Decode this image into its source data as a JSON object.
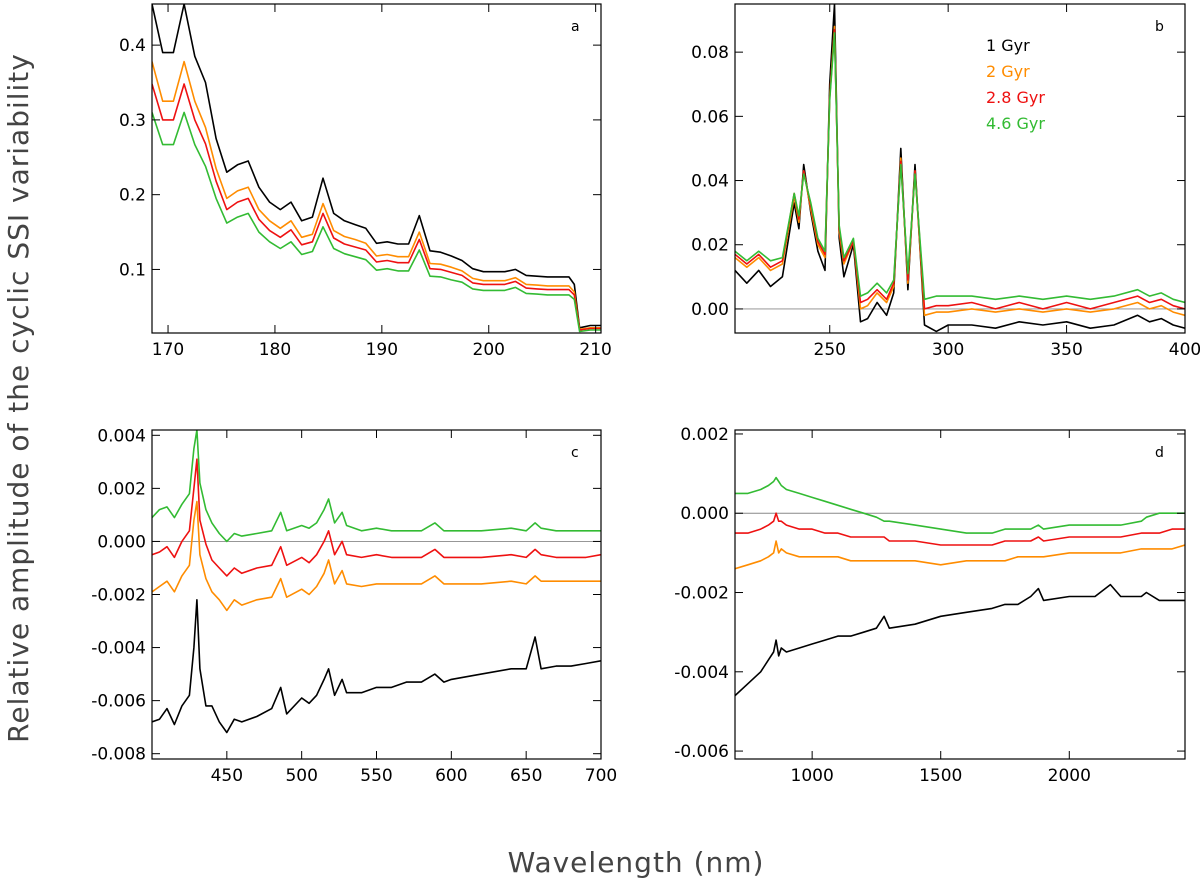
{
  "figure": {
    "xlabel": "Wavelength (nm)",
    "ylabel": "Relative amplitude of the cyclic SSI variability"
  },
  "colors": {
    "1 Gyr": "#000000",
    "2 Gyr": "#ff8c00",
    "2.8 Gyr": "#ee1111",
    "4.6 Gyr": "#33bb33"
  },
  "chart_data": [
    {
      "type": "line",
      "panel": "a",
      "xlim": [
        168.5,
        210.5
      ],
      "ylim": [
        0.015,
        0.455
      ],
      "xticks": [
        170,
        180,
        190,
        200,
        210
      ],
      "yticks": [
        0.1,
        0.2,
        0.3,
        0.4
      ],
      "ytick_labels": [
        "0.1",
        "0.2",
        "0.3",
        "0.4"
      ],
      "x": [
        168.5,
        169.5,
        170.5,
        171.5,
        172.5,
        173.5,
        174.5,
        175.5,
        176.5,
        177.5,
        178.5,
        179.5,
        180.5,
        181.5,
        182.5,
        183.5,
        184.5,
        185.5,
        186.5,
        187.5,
        188.5,
        189.5,
        190.5,
        191.5,
        192.5,
        193.5,
        194.5,
        195.5,
        196.5,
        197.5,
        198.5,
        199.5,
        200.5,
        201.5,
        202.5,
        203.5,
        204.5,
        205.5,
        206.5,
        207.5,
        208.0,
        208.5,
        209.5,
        210.5
      ],
      "series": [
        {
          "name": "1 Gyr",
          "values": [
            0.455,
            0.39,
            0.39,
            0.455,
            0.385,
            0.35,
            0.275,
            0.23,
            0.24,
            0.245,
            0.21,
            0.19,
            0.18,
            0.19,
            0.165,
            0.17,
            0.222,
            0.175,
            0.165,
            0.16,
            0.155,
            0.135,
            0.137,
            0.134,
            0.134,
            0.172,
            0.125,
            0.123,
            0.118,
            0.112,
            0.101,
            0.097,
            0.097,
            0.097,
            0.1,
            0.092,
            0.091,
            0.09,
            0.09,
            0.09,
            0.08,
            0.022,
            0.025,
            0.025
          ]
        },
        {
          "name": "2 Gyr",
          "values": [
            0.378,
            0.325,
            0.325,
            0.378,
            0.325,
            0.29,
            0.235,
            0.195,
            0.205,
            0.21,
            0.18,
            0.165,
            0.155,
            0.165,
            0.143,
            0.147,
            0.188,
            0.152,
            0.144,
            0.14,
            0.135,
            0.118,
            0.12,
            0.117,
            0.117,
            0.15,
            0.108,
            0.107,
            0.103,
            0.098,
            0.088,
            0.085,
            0.085,
            0.085,
            0.089,
            0.08,
            0.079,
            0.078,
            0.078,
            0.078,
            0.07,
            0.02,
            0.022,
            0.022
          ]
        },
        {
          "name": "2.8 Gyr",
          "values": [
            0.348,
            0.3,
            0.3,
            0.348,
            0.3,
            0.268,
            0.218,
            0.18,
            0.19,
            0.195,
            0.167,
            0.152,
            0.143,
            0.153,
            0.133,
            0.137,
            0.175,
            0.142,
            0.134,
            0.13,
            0.126,
            0.11,
            0.112,
            0.109,
            0.109,
            0.14,
            0.101,
            0.1,
            0.096,
            0.092,
            0.082,
            0.08,
            0.08,
            0.08,
            0.084,
            0.075,
            0.074,
            0.073,
            0.073,
            0.073,
            0.066,
            0.019,
            0.021,
            0.021
          ]
        },
        {
          "name": "4.6 Gyr",
          "values": [
            0.31,
            0.267,
            0.267,
            0.31,
            0.267,
            0.238,
            0.195,
            0.162,
            0.17,
            0.175,
            0.15,
            0.137,
            0.128,
            0.137,
            0.12,
            0.124,
            0.157,
            0.128,
            0.121,
            0.117,
            0.113,
            0.099,
            0.101,
            0.098,
            0.098,
            0.126,
            0.091,
            0.09,
            0.086,
            0.083,
            0.074,
            0.072,
            0.072,
            0.072,
            0.076,
            0.068,
            0.067,
            0.066,
            0.066,
            0.066,
            0.06,
            0.017,
            0.019,
            0.019
          ]
        }
      ]
    },
    {
      "type": "line",
      "panel": "b",
      "xlim": [
        210,
        400
      ],
      "ylim": [
        -0.0075,
        0.095
      ],
      "xticks": [
        250,
        300,
        350,
        400
      ],
      "yticks": [
        0,
        0.02,
        0.04,
        0.06,
        0.08
      ],
      "ytick_labels": [
        "0.00",
        "0.02",
        "0.04",
        "0.06",
        "0.08"
      ],
      "zero_line": true,
      "legend": {
        "position": "top-right",
        "entries": [
          "1 Gyr",
          "2 Gyr",
          "2.8 Gyr",
          "4.6 Gyr"
        ]
      },
      "x": [
        210,
        215,
        220,
        225,
        230,
        235,
        237,
        239,
        242,
        245,
        248,
        250,
        252,
        254,
        256,
        260,
        263,
        266,
        270,
        274,
        277,
        280,
        283,
        286,
        290,
        295,
        300,
        310,
        320,
        330,
        340,
        350,
        360,
        370,
        380,
        385,
        390,
        395,
        400
      ],
      "series": [
        {
          "name": "1 Gyr",
          "values": [
            0.012,
            0.008,
            0.012,
            0.007,
            0.01,
            0.033,
            0.025,
            0.045,
            0.03,
            0.018,
            0.012,
            0.07,
            0.095,
            0.022,
            0.01,
            0.02,
            -0.004,
            -0.003,
            0.002,
            -0.002,
            0.005,
            0.05,
            0.006,
            0.045,
            -0.005,
            -0.007,
            -0.005,
            -0.005,
            -0.006,
            -0.004,
            -0.005,
            -0.004,
            -0.006,
            -0.005,
            -0.002,
            -0.004,
            -0.003,
            -0.005,
            -0.006
          ]
        },
        {
          "name": "2 Gyr",
          "values": [
            0.016,
            0.013,
            0.016,
            0.012,
            0.014,
            0.035,
            0.027,
            0.043,
            0.031,
            0.02,
            0.016,
            0.066,
            0.088,
            0.024,
            0.014,
            0.021,
            0.0,
            0.001,
            0.005,
            0.002,
            0.007,
            0.047,
            0.008,
            0.043,
            -0.002,
            -0.001,
            -0.001,
            0.0,
            -0.001,
            0.0,
            -0.001,
            0.0,
            -0.001,
            0.0,
            0.002,
            0.0,
            0.001,
            -0.001,
            -0.002
          ]
        },
        {
          "name": "2.8 Gyr",
          "values": [
            0.017,
            0.014,
            0.017,
            0.013,
            0.015,
            0.036,
            0.028,
            0.043,
            0.032,
            0.021,
            0.017,
            0.066,
            0.087,
            0.025,
            0.015,
            0.021,
            0.002,
            0.003,
            0.006,
            0.003,
            0.008,
            0.046,
            0.009,
            0.043,
            0.0,
            0.001,
            0.001,
            0.002,
            0.0,
            0.002,
            0.0,
            0.002,
            0.0,
            0.002,
            0.004,
            0.002,
            0.003,
            0.001,
            0.0
          ]
        },
        {
          "name": "4.6 Gyr",
          "values": [
            0.018,
            0.015,
            0.018,
            0.015,
            0.016,
            0.036,
            0.029,
            0.042,
            0.033,
            0.022,
            0.018,
            0.065,
            0.086,
            0.026,
            0.016,
            0.022,
            0.004,
            0.005,
            0.008,
            0.005,
            0.009,
            0.045,
            0.011,
            0.042,
            0.003,
            0.004,
            0.004,
            0.004,
            0.003,
            0.004,
            0.003,
            0.004,
            0.003,
            0.004,
            0.006,
            0.004,
            0.005,
            0.003,
            0.002
          ]
        }
      ]
    },
    {
      "type": "line",
      "panel": "c",
      "xlim": [
        400,
        700
      ],
      "ylim": [
        -0.0082,
        0.0042
      ],
      "xticks": [
        450,
        500,
        550,
        600,
        650,
        700
      ],
      "yticks": [
        -0.008,
        -0.006,
        -0.004,
        -0.002,
        0,
        0.002,
        0.004
      ],
      "ytick_labels": [
        "-0.008",
        "-0.006",
        "-0.004",
        "-0.002",
        "0.000",
        "0.002",
        "0.004"
      ],
      "zero_line": true,
      "x": [
        400,
        405,
        410,
        415,
        420,
        425,
        428,
        430,
        432,
        436,
        440,
        445,
        450,
        455,
        460,
        470,
        480,
        486,
        490,
        500,
        505,
        510,
        515,
        518,
        522,
        527,
        530,
        540,
        550,
        560,
        570,
        580,
        589,
        595,
        600,
        620,
        640,
        650,
        656,
        660,
        670,
        680,
        690,
        700
      ],
      "series": [
        {
          "name": "1 Gyr",
          "values": [
            -0.0068,
            -0.0067,
            -0.0063,
            -0.0069,
            -0.0062,
            -0.0058,
            -0.004,
            -0.0022,
            -0.0048,
            -0.0062,
            -0.0062,
            -0.0068,
            -0.0072,
            -0.0067,
            -0.0068,
            -0.0066,
            -0.0063,
            -0.0055,
            -0.0065,
            -0.0059,
            -0.0061,
            -0.0058,
            -0.0052,
            -0.0048,
            -0.0058,
            -0.0052,
            -0.0057,
            -0.0057,
            -0.0055,
            -0.0055,
            -0.0053,
            -0.0053,
            -0.005,
            -0.0053,
            -0.0052,
            -0.005,
            -0.0048,
            -0.0048,
            -0.0036,
            -0.0048,
            -0.0047,
            -0.0047,
            -0.0046,
            -0.0045
          ]
        },
        {
          "name": "2 Gyr",
          "values": [
            -0.0019,
            -0.0017,
            -0.0015,
            -0.0019,
            -0.0013,
            -0.0009,
            0.0008,
            0.0015,
            -0.0005,
            -0.0014,
            -0.0019,
            -0.0022,
            -0.0026,
            -0.0022,
            -0.0024,
            -0.0022,
            -0.0021,
            -0.0014,
            -0.0021,
            -0.0018,
            -0.002,
            -0.0017,
            -0.0012,
            -0.0007,
            -0.0016,
            -0.0011,
            -0.0016,
            -0.0017,
            -0.0016,
            -0.0016,
            -0.0016,
            -0.0016,
            -0.0013,
            -0.0016,
            -0.0016,
            -0.0016,
            -0.0015,
            -0.0016,
            -0.0013,
            -0.0015,
            -0.0015,
            -0.0015,
            -0.0015,
            -0.0015
          ]
        },
        {
          "name": "2.8 Gyr",
          "values": [
            -0.0005,
            -0.0004,
            -0.0002,
            -0.0006,
            0.0,
            0.0004,
            0.002,
            0.0031,
            0.0008,
            -0.0001,
            -0.0007,
            -0.001,
            -0.0013,
            -0.001,
            -0.0012,
            -0.001,
            -0.0009,
            -0.0002,
            -0.0009,
            -0.0006,
            -0.0008,
            -0.0005,
            0.0,
            0.0004,
            -0.0005,
            0.0,
            -0.0005,
            -0.0006,
            -0.0005,
            -0.0006,
            -0.0006,
            -0.0006,
            -0.0003,
            -0.0006,
            -0.0006,
            -0.0006,
            -0.0005,
            -0.0006,
            -0.0003,
            -0.0005,
            -0.0006,
            -0.0006,
            -0.0006,
            -0.0005
          ]
        },
        {
          "name": "4.6 Gyr",
          "values": [
            0.0009,
            0.0012,
            0.0013,
            0.0009,
            0.0014,
            0.0018,
            0.0035,
            0.0042,
            0.0022,
            0.0012,
            0.0007,
            0.0003,
            0.0,
            0.0003,
            0.0002,
            0.0003,
            0.0004,
            0.0011,
            0.0004,
            0.0006,
            0.0005,
            0.0007,
            0.0012,
            0.0016,
            0.0007,
            0.0011,
            0.0006,
            0.0004,
            0.0005,
            0.0004,
            0.0004,
            0.0004,
            0.0007,
            0.0004,
            0.0004,
            0.0004,
            0.0005,
            0.0004,
            0.0007,
            0.0005,
            0.0004,
            0.0004,
            0.0004,
            0.0004
          ]
        }
      ]
    },
    {
      "type": "line",
      "panel": "d",
      "xlim": [
        700,
        2450
      ],
      "ylim": [
        -0.0062,
        0.0021
      ],
      "xticks": [
        1000,
        1500,
        2000
      ],
      "yticks": [
        -0.006,
        -0.004,
        -0.002,
        0,
        0.002
      ],
      "ytick_labels": [
        "-0.006",
        "-0.004",
        "-0.002",
        "0.000",
        "0.002"
      ],
      "zero_line": true,
      "x": [
        700,
        750,
        800,
        830,
        850,
        860,
        870,
        880,
        900,
        950,
        1000,
        1050,
        1100,
        1150,
        1200,
        1250,
        1280,
        1300,
        1400,
        1500,
        1600,
        1700,
        1750,
        1800,
        1850,
        1880,
        1900,
        2000,
        2100,
        2160,
        2200,
        2280,
        2300,
        2350,
        2400,
        2450
      ],
      "series": [
        {
          "name": "1 Gyr",
          "values": [
            -0.0046,
            -0.0043,
            -0.004,
            -0.0037,
            -0.0035,
            -0.0032,
            -0.0036,
            -0.0034,
            -0.0035,
            -0.0034,
            -0.0033,
            -0.0032,
            -0.0031,
            -0.0031,
            -0.003,
            -0.0029,
            -0.0026,
            -0.0029,
            -0.0028,
            -0.0026,
            -0.0025,
            -0.0024,
            -0.0023,
            -0.0023,
            -0.0021,
            -0.0019,
            -0.0022,
            -0.0021,
            -0.0021,
            -0.0018,
            -0.0021,
            -0.0021,
            -0.002,
            -0.0022,
            -0.0022,
            -0.0022
          ]
        },
        {
          "name": "2 Gyr",
          "values": [
            -0.0014,
            -0.0013,
            -0.0012,
            -0.0011,
            -0.001,
            -0.0007,
            -0.001,
            -0.0009,
            -0.001,
            -0.0011,
            -0.0011,
            -0.0011,
            -0.0011,
            -0.0012,
            -0.0012,
            -0.0012,
            -0.0012,
            -0.0012,
            -0.0012,
            -0.0013,
            -0.0012,
            -0.0012,
            -0.0012,
            -0.0011,
            -0.0011,
            -0.0011,
            -0.0011,
            -0.001,
            -0.001,
            -0.001,
            -0.001,
            -0.0009,
            -0.0009,
            -0.0009,
            -0.0009,
            -0.0008
          ]
        },
        {
          "name": "2.8 Gyr",
          "values": [
            -0.0005,
            -0.0005,
            -0.0004,
            -0.0003,
            -0.0002,
            0.0,
            -0.0002,
            -0.0002,
            -0.0003,
            -0.0004,
            -0.0004,
            -0.0005,
            -0.0005,
            -0.0006,
            -0.0006,
            -0.0006,
            -0.0006,
            -0.0007,
            -0.0007,
            -0.0008,
            -0.0008,
            -0.0008,
            -0.0007,
            -0.0007,
            -0.0007,
            -0.0006,
            -0.0007,
            -0.0006,
            -0.0006,
            -0.0006,
            -0.0006,
            -0.0005,
            -0.0005,
            -0.0005,
            -0.0004,
            -0.0004
          ]
        },
        {
          "name": "4.6 Gyr",
          "values": [
            0.0005,
            0.0005,
            0.0006,
            0.0007,
            0.0008,
            0.0009,
            0.0008,
            0.0007,
            0.0006,
            0.0005,
            0.0004,
            0.0003,
            0.0002,
            0.0001,
            0.0,
            -0.0001,
            -0.0002,
            -0.0002,
            -0.0003,
            -0.0004,
            -0.0005,
            -0.0005,
            -0.0004,
            -0.0004,
            -0.0004,
            -0.0003,
            -0.0004,
            -0.0003,
            -0.0003,
            -0.0003,
            -0.0003,
            -0.0002,
            -0.0001,
            0.0,
            0.0,
            0.0
          ]
        }
      ]
    }
  ]
}
